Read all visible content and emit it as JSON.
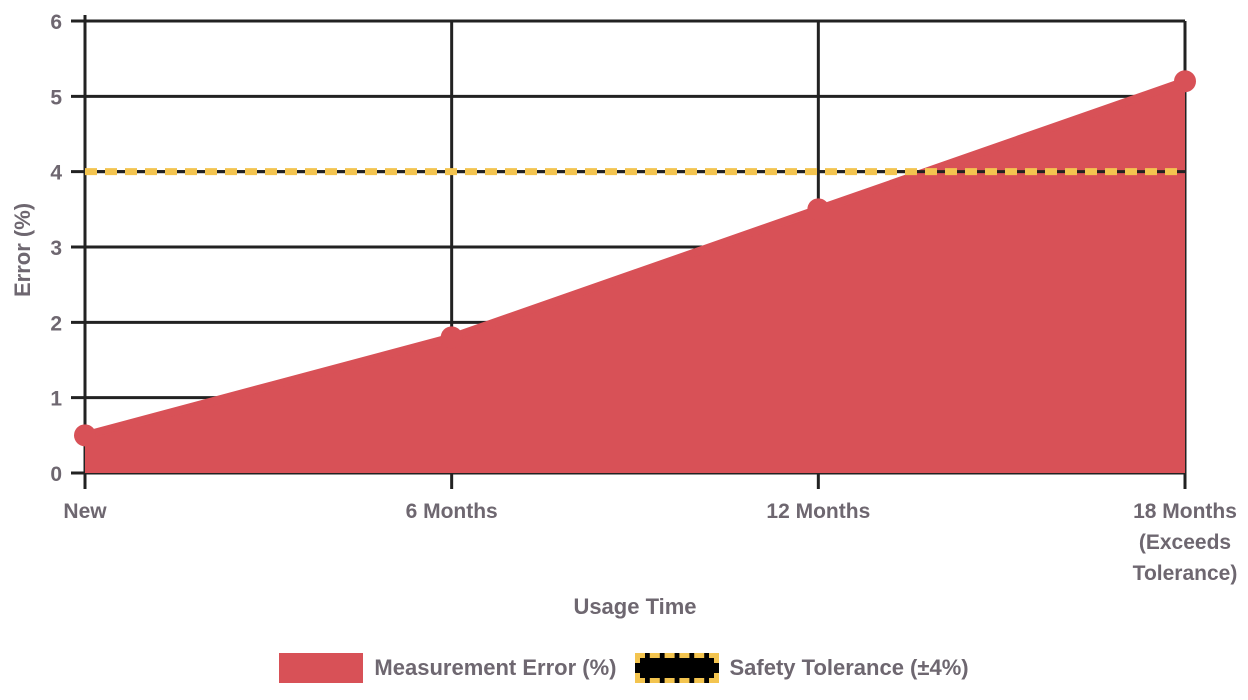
{
  "chart_data": {
    "type": "area",
    "title": "",
    "categories": [
      "New",
      "6 Months",
      "12 Months",
      "18 Months (Exceeds Tolerance)"
    ],
    "category_label_lines": [
      [
        "New"
      ],
      [
        "6 Months"
      ],
      [
        "12 Months"
      ],
      [
        "18 Months",
        "(Exceeds",
        "Tolerance)"
      ]
    ],
    "series": [
      {
        "name": "Measurement Error (%)",
        "type": "area",
        "values": [
          0.5,
          1.8,
          3.5,
          5.2
        ],
        "color": "#D85157",
        "point_radius": 11,
        "line_width": 8
      },
      {
        "name": "Safety Tolerance (±4%)",
        "type": "horizontal-dashed-line",
        "value": 4,
        "values": [
          4,
          4,
          4,
          4
        ],
        "color": "#F3C44F",
        "fill_color": "#000000",
        "underline_color": "#222222",
        "dash": [
          12,
          8
        ],
        "line_width": 7
      }
    ],
    "xlabel": "Usage Time",
    "ylabel": "Error (%)",
    "ylim": [
      0,
      6
    ],
    "yticks": [
      0,
      1,
      2,
      3,
      4,
      5,
      6
    ],
    "grid": true,
    "legend_position": "bottom"
  },
  "colors": {
    "background": "#FFFFFF",
    "grid": "#222222",
    "text": "#6E6770"
  }
}
